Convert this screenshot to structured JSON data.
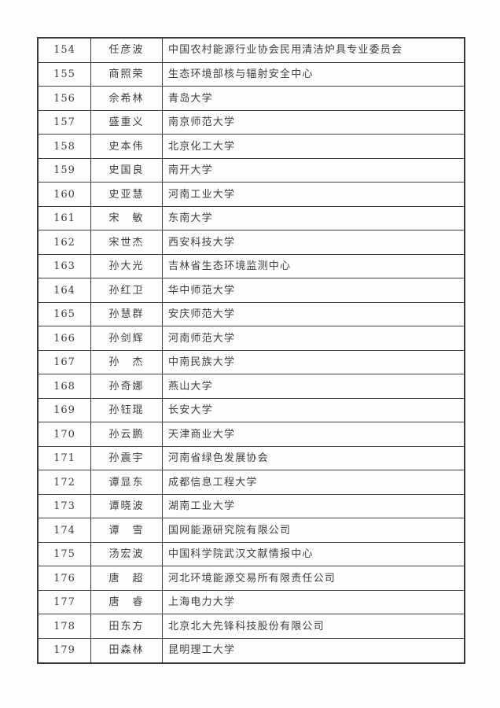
{
  "colors": {
    "background": "#fefefe",
    "border": "#3f3f3f",
    "text": "#3d3d3d"
  },
  "table": {
    "columns": [
      "number",
      "name",
      "organization"
    ],
    "rows": [
      {
        "number": "154",
        "name": "任彦波",
        "organization": "中国农村能源行业协会民用清洁炉具专业委员会"
      },
      {
        "number": "155",
        "name": "商照荣",
        "organization": "生态环境部核与辐射安全中心"
      },
      {
        "number": "156",
        "name": "佘希林",
        "organization": "青岛大学"
      },
      {
        "number": "157",
        "name": "盛重义",
        "organization": "南京师范大学"
      },
      {
        "number": "158",
        "name": "史本伟",
        "organization": "北京化工大学"
      },
      {
        "number": "159",
        "name": "史国良",
        "organization": "南开大学"
      },
      {
        "number": "160",
        "name": "史亚慧",
        "organization": "河南工业大学"
      },
      {
        "number": "161",
        "name": "宋　敏",
        "organization": "东南大学"
      },
      {
        "number": "162",
        "name": "宋世杰",
        "organization": "西安科技大学"
      },
      {
        "number": "163",
        "name": "孙大光",
        "organization": "吉林省生态环境监测中心"
      },
      {
        "number": "164",
        "name": "孙红卫",
        "organization": "华中师范大学"
      },
      {
        "number": "165",
        "name": "孙慧群",
        "organization": "安庆师范大学"
      },
      {
        "number": "166",
        "name": "孙剑辉",
        "organization": "河南师范大学"
      },
      {
        "number": "167",
        "name": "孙　杰",
        "organization": "中南民族大学"
      },
      {
        "number": "168",
        "name": "孙奇娜",
        "organization": "燕山大学"
      },
      {
        "number": "169",
        "name": "孙钰琨",
        "organization": "长安大学"
      },
      {
        "number": "170",
        "name": "孙云鹏",
        "organization": "天津商业大学"
      },
      {
        "number": "171",
        "name": "孙震宇",
        "organization": "河南省绿色发展协会"
      },
      {
        "number": "172",
        "name": "谭显东",
        "organization": "成都信息工程大学"
      },
      {
        "number": "173",
        "name": "谭晓波",
        "organization": "湖南工业大学"
      },
      {
        "number": "174",
        "name": "谭　雪",
        "organization": "国网能源研究院有限公司"
      },
      {
        "number": "175",
        "name": "汤宏波",
        "organization": "中国科学院武汉文献情报中心"
      },
      {
        "number": "176",
        "name": "唐　超",
        "organization": "河北环境能源交易所有限责任公司"
      },
      {
        "number": "177",
        "name": "唐　睿",
        "organization": "上海电力大学"
      },
      {
        "number": "178",
        "name": "田东方",
        "organization": "北京北大先锋科技股份有限公司"
      },
      {
        "number": "179",
        "name": "田森林",
        "organization": "昆明理工大学"
      }
    ]
  }
}
